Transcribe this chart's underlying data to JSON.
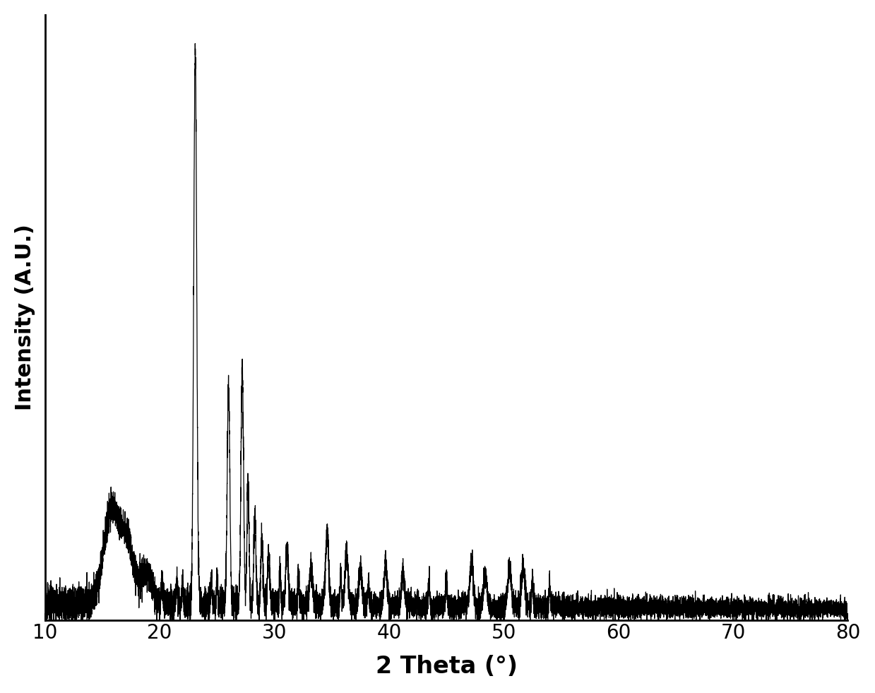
{
  "xlabel": "2 Theta (°)",
  "ylabel": "Intensity (A.U.)",
  "xlim": [
    10,
    80
  ],
  "ylim": [
    0,
    1.05
  ],
  "xlabel_fontsize": 24,
  "ylabel_fontsize": 22,
  "tick_fontsize": 20,
  "line_color": "#000000",
  "line_width": 0.9,
  "background_color": "#ffffff",
  "xticks": [
    10,
    20,
    30,
    40,
    50,
    60,
    70,
    80
  ]
}
